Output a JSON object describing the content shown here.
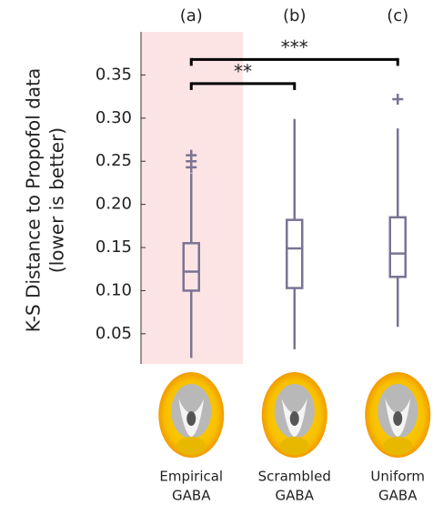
{
  "chart_data": {
    "type": "box",
    "ylabel": [
      "K-S Distance to Propofol data",
      "(lower is better)"
    ],
    "group_labels": [
      "(a)",
      "(b)",
      "(c)"
    ],
    "categories": [
      [
        "Empirical",
        "GABA"
      ],
      [
        "Scrambled",
        "GABA"
      ],
      [
        "Uniform",
        "GABA"
      ]
    ],
    "color": "#7b7394",
    "highlight": 0,
    "highlight_color": "#fde4e4",
    "boxes": [
      {
        "whisker_low": 0.022,
        "q1": 0.1,
        "median": 0.122,
        "q3": 0.155,
        "whisker_high": 0.236,
        "outliers": [
          0.243,
          0.25,
          0.257
        ]
      },
      {
        "whisker_low": 0.032,
        "q1": 0.103,
        "median": 0.149,
        "q3": 0.182,
        "whisker_high": 0.299,
        "outliers": []
      },
      {
        "whisker_low": 0.058,
        "q1": 0.116,
        "median": 0.143,
        "q3": 0.185,
        "whisker_high": 0.288,
        "outliers": [
          0.322
        ]
      }
    ],
    "annotations": [
      {
        "text": "**",
        "x": [
          0,
          1
        ],
        "y": 0.34
      },
      {
        "text": "***",
        "x": [
          0,
          2
        ],
        "y": 0.368
      }
    ],
    "ylim": [
      0.015,
      0.4
    ],
    "yticks": [
      0.05,
      {
        "value": 0.1,
        "label": "0.10"
      },
      0.15,
      {
        "value": 0.2,
        "label": "0.20"
      },
      0.25,
      {
        "value": 0.3,
        "label": "0.30"
      },
      0.35
    ]
  }
}
